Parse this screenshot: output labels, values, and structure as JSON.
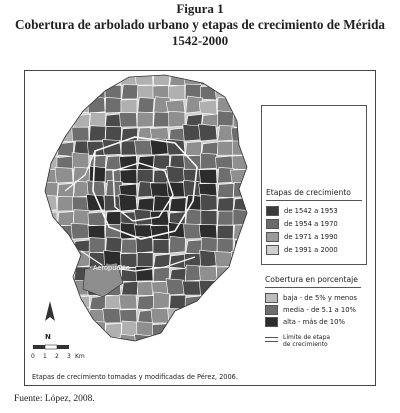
{
  "figure": {
    "label": "Figura 1",
    "heading": "Cobertura de arbolado urbano y etapas de crecimiento de Mérida",
    "years": "1542-2000"
  },
  "map": {
    "airport_label": "Aeropuerto",
    "north_label": "N",
    "scale": {
      "ticks": [
        "0",
        "1",
        "2",
        "3"
      ],
      "unit": "Km"
    },
    "source_note": "Etapas de crecimiento tomadas y modificadas de Pérez, 2006."
  },
  "legend_stages": {
    "title": "Etapas de crecimiento",
    "items": [
      {
        "label": "de 1542 a 1953",
        "color": "#3a3a3a"
      },
      {
        "label": "de 1954 a 1970",
        "color": "#6a6a6a"
      },
      {
        "label": "de 1971 a 1990",
        "color": "#9a9a9a"
      },
      {
        "label": "de 1991 a 2000",
        "color": "#cfcfcf"
      }
    ]
  },
  "legend_cover": {
    "title": "Cobertura en porcentaje",
    "items": [
      {
        "label": "baja - de 5% y menos",
        "color": "#bdbdbd"
      },
      {
        "label": "media - de 5.1 a 10%",
        "color": "#6e6e6e"
      },
      {
        "label": "alta - más de 10%",
        "color": "#2c2c2c"
      }
    ],
    "boundary_label_1": "Límite de etapa",
    "boundary_label_2": "de crecimiento"
  },
  "footer": {
    "source": "Fuente: López, 2008."
  }
}
